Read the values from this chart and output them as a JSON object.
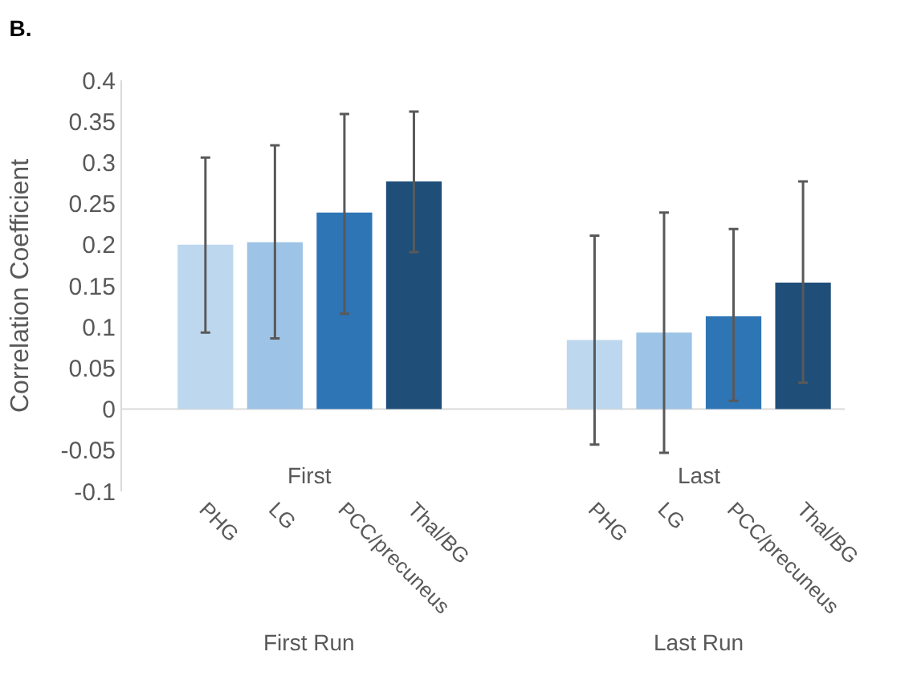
{
  "chart_data": {
    "type": "bar",
    "title": "B.",
    "ylabel": "Correlation Coefficient",
    "categories": [
      "PHG",
      "LG",
      "PCC/precuneus",
      "Thal/BG",
      "PHG",
      "LG",
      "PCC/precuneus",
      "Thal/BG"
    ],
    "values": [
      0.2,
      0.203,
      0.239,
      0.277,
      0.084,
      0.093,
      0.113,
      0.154
    ],
    "colors": [
      "#bdd7ee",
      "#9dc3e6",
      "#2e75b6",
      "#1f4e79",
      "#bdd7ee",
      "#9dc3e6",
      "#2e75b6",
      "#1f4e79"
    ],
    "errors": [
      [
        0.093,
        0.306
      ],
      [
        0.086,
        0.321
      ],
      [
        0.116,
        0.359
      ],
      [
        0.191,
        0.362
      ],
      [
        -0.043,
        0.211
      ],
      [
        -0.053,
        0.239
      ],
      [
        0.01,
        0.219
      ],
      [
        0.032,
        0.277
      ]
    ],
    "ylim": [
      -0.1,
      0.4
    ],
    "yticks": [
      -0.1,
      -0.05,
      0,
      0.05,
      0.1,
      0.15,
      0.2,
      0.25,
      0.3,
      0.35,
      0.4
    ],
    "annotations": [
      "First",
      "Last",
      "First Run",
      "Last Run"
    ],
    "ref_lines": [
      {
        "axis": "y",
        "value": 0,
        "color": "#d9d9d9"
      }
    ],
    "grid": false
  }
}
